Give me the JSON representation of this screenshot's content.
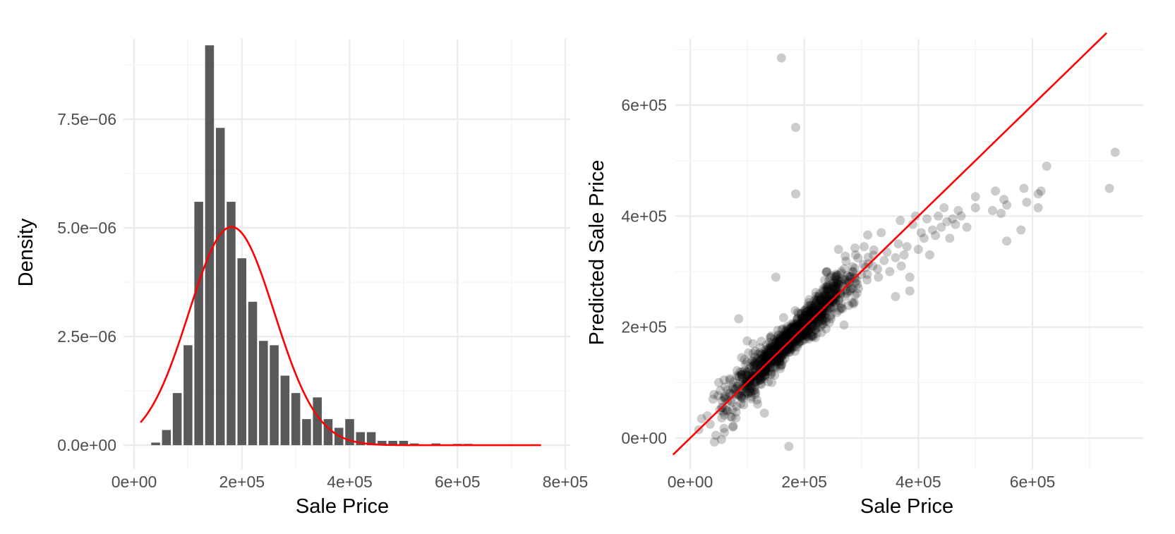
{
  "chart_data": [
    {
      "type": "bar",
      "subtype": "histogram-with-normal-density",
      "xlabel": "Sale Price",
      "ylabel": "Density",
      "xlim": [
        0,
        800000
      ],
      "ylim": [
        -5.5e-07,
        9.35e-06
      ],
      "x_ticks": [
        0,
        200000,
        400000,
        600000,
        800000
      ],
      "x_tick_labels": [
        "0e+00",
        "2e+05",
        "4e+05",
        "6e+05",
        "8e+05"
      ],
      "y_ticks": [
        0,
        2.5e-06,
        5e-06,
        7.5e-06
      ],
      "y_tick_labels": [
        "0.0e+00",
        "2.5e−06",
        "5.0e−06",
        "7.5e−06"
      ],
      "grid": true,
      "bar_color": "#595959",
      "bins": [
        {
          "x": 40000,
          "density": 6e-08
        },
        {
          "x": 60000,
          "density": 3.5e-07
        },
        {
          "x": 80000,
          "density": 1.2e-06
        },
        {
          "x": 100000,
          "density": 2.3e-06
        },
        {
          "x": 120000,
          "density": 5.6e-06
        },
        {
          "x": 140000,
          "density": 9.2e-06
        },
        {
          "x": 160000,
          "density": 7.3e-06
        },
        {
          "x": 180000,
          "density": 5.6e-06
        },
        {
          "x": 200000,
          "density": 4.3e-06
        },
        {
          "x": 220000,
          "density": 3.3e-06
        },
        {
          "x": 240000,
          "density": 2.4e-06
        },
        {
          "x": 260000,
          "density": 2.3e-06
        },
        {
          "x": 280000,
          "density": 1.6e-06
        },
        {
          "x": 300000,
          "density": 1.2e-06
        },
        {
          "x": 320000,
          "density": 6e-07
        },
        {
          "x": 340000,
          "density": 1.1e-06
        },
        {
          "x": 360000,
          "density": 6e-07
        },
        {
          "x": 380000,
          "density": 4e-07
        },
        {
          "x": 400000,
          "density": 6e-07
        },
        {
          "x": 420000,
          "density": 3e-07
        },
        {
          "x": 440000,
          "density": 3e-07
        },
        {
          "x": 460000,
          "density": 1e-07
        },
        {
          "x": 480000,
          "density": 1e-07
        },
        {
          "x": 500000,
          "density": 1e-07
        },
        {
          "x": 520000,
          "density": 4e-08
        },
        {
          "x": 560000,
          "density": 4e-08
        },
        {
          "x": 600000,
          "density": 3e-08
        },
        {
          "x": 620000,
          "density": 3e-08
        }
      ],
      "normal_curve": {
        "mean": 180921,
        "sd": 79443,
        "x_range": [
          12000,
          755000
        ],
        "color": "#ff0000"
      }
    },
    {
      "type": "scatter",
      "xlabel": "Sale Price",
      "ylabel": "Predicted Sale Price",
      "xlim": [
        -20000,
        800000
      ],
      "ylim": [
        -55000,
        725000
      ],
      "x_ticks": [
        0,
        200000,
        400000,
        600000
      ],
      "x_tick_labels": [
        "0e+00",
        "2e+05",
        "4e+05",
        "6e+05"
      ],
      "y_ticks": [
        0,
        200000,
        400000,
        600000
      ],
      "y_tick_labels": [
        "0e+00",
        "2e+05",
        "4e+05",
        "6e+05"
      ],
      "grid": true,
      "point_color": "#000000",
      "point_alpha": 0.2,
      "reference_line": {
        "slope": 1,
        "intercept": 0,
        "color": "#ff0000"
      },
      "points": [
        [
          160000,
          685000
        ],
        [
          185000,
          560000
        ],
        [
          185000,
          440000
        ],
        [
          173000,
          -15000
        ],
        [
          745000,
          515000
        ],
        [
          735000,
          450000
        ],
        [
          625000,
          490000
        ],
        [
          610000,
          440000
        ],
        [
          615000,
          445000
        ],
        [
          610000,
          415000
        ],
        [
          590000,
          425000
        ],
        [
          585000,
          450000
        ],
        [
          580000,
          375000
        ],
        [
          555000,
          420000
        ],
        [
          550000,
          430000
        ],
        [
          545000,
          405000
        ],
        [
          535000,
          445000
        ],
        [
          530000,
          410000
        ],
        [
          555000,
          355000
        ],
        [
          500000,
          435000
        ],
        [
          500000,
          415000
        ],
        [
          485000,
          380000
        ],
        [
          475000,
          400000
        ],
        [
          470000,
          410000
        ],
        [
          465000,
          385000
        ],
        [
          460000,
          395000
        ],
        [
          455000,
          360000
        ],
        [
          450000,
          390000
        ],
        [
          445000,
          415000
        ],
        [
          440000,
          380000
        ],
        [
          435000,
          400000
        ],
        [
          430000,
          365000
        ],
        [
          425000,
          375000
        ],
        [
          420000,
          330000
        ],
        [
          415000,
          395000
        ],
        [
          410000,
          360000
        ],
        [
          405000,
          370000
        ],
        [
          400000,
          340000
        ],
        [
          395000,
          400000
        ],
        [
          390000,
          385000
        ],
        [
          385000,
          290000
        ],
        [
          380000,
          345000
        ],
        [
          375000,
          330000
        ],
        [
          370000,
          310000
        ],
        [
          365000,
          350000
        ],
        [
          360000,
          325000
        ],
        [
          350000,
          300000
        ],
        [
          345000,
          335000
        ],
        [
          340000,
          320000
        ],
        [
          335000,
          370000
        ],
        [
          330000,
          290000
        ],
        [
          320000,
          310000
        ],
        [
          310000,
          285000
        ],
        [
          305000,
          345000
        ],
        [
          300000,
          295000
        ],
        [
          295000,
          270000
        ],
        [
          290000,
          330000
        ],
        [
          285000,
          300000
        ],
        [
          280000,
          265000
        ],
        [
          270000,
          305000
        ],
        [
          260000,
          340000
        ],
        [
          255000,
          255000
        ],
        [
          250000,
          280000
        ],
        [
          245000,
          235000
        ],
        [
          240000,
          300000
        ],
        [
          230000,
          190000
        ],
        [
          220000,
          195000
        ],
        [
          150000,
          290000
        ],
        [
          85000,
          215000
        ],
        [
          40000,
          70000
        ],
        [
          20000,
          35000
        ],
        [
          15000,
          15000
        ],
        [
          60000,
          10000
        ],
        [
          75000,
          20000
        ],
        [
          130000,
          45000
        ],
        [
          90000,
          145000
        ],
        [
          110000,
          170000
        ],
        [
          50000,
          100000
        ],
        [
          30000,
          40000
        ],
        [
          45000,
          5000
        ],
        [
          35000,
          25000
        ],
        [
          55000,
          55000
        ],
        [
          100000,
          175000
        ],
        [
          250000,
          250000
        ],
        [
          265000,
          235000
        ],
        [
          235000,
          255000
        ],
        [
          360000,
          255000
        ],
        [
          385000,
          265000
        ]
      ]
    }
  ]
}
